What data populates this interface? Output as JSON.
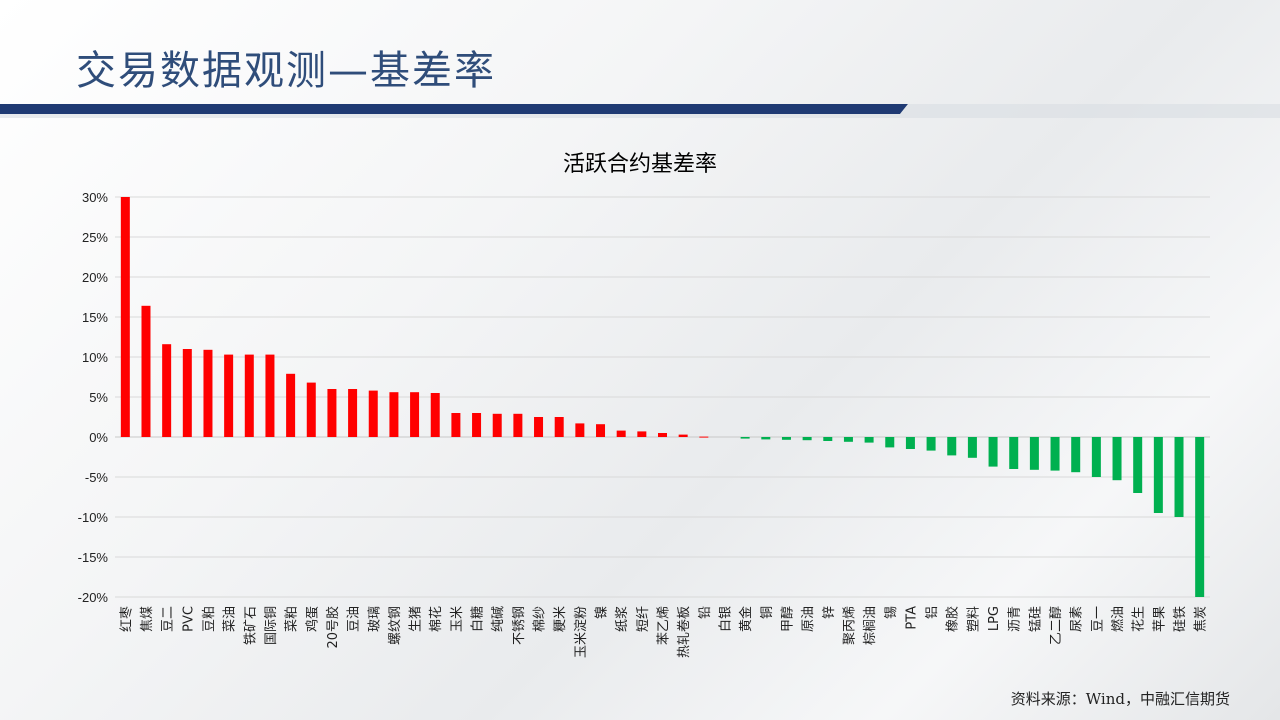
{
  "slide": {
    "title": "交易数据观测—基差率",
    "source": "资料来源：Wind，中融汇信期货"
  },
  "colors": {
    "positive": "#ff0000",
    "negative": "#00b050",
    "title": "#2f4d7a",
    "accent_bar": "#1f3a73"
  },
  "chart_data": {
    "type": "bar",
    "title": "活跃合约基差率",
    "xlabel": "",
    "ylabel": "",
    "ylim": [
      -20,
      30
    ],
    "y_ticks": [
      30,
      25,
      20,
      15,
      10,
      5,
      0,
      -5,
      -10,
      -15,
      -20
    ],
    "y_tick_labels": [
      "30%",
      "25%",
      "20%",
      "15%",
      "10%",
      "5%",
      "0%",
      "-5%",
      "-10%",
      "-15%",
      "-20%"
    ],
    "grid": true,
    "legend": "none",
    "categories": [
      "红枣",
      "焦煤",
      "豆二",
      "PVC",
      "豆粕",
      "菜油",
      "铁矿石",
      "国际铜",
      "菜粕",
      "鸡蛋",
      "20号胶",
      "豆油",
      "玻璃",
      "螺纹钢",
      "生猪",
      "棉花",
      "玉米",
      "白糖",
      "纯碱",
      "不锈钢",
      "棉纱",
      "粳米",
      "玉米淀粉",
      "镍",
      "纸浆",
      "短纤",
      "苯乙烯",
      "热轧卷板",
      "铅",
      "白银",
      "黄金",
      "铜",
      "甲醇",
      "原油",
      "锌",
      "聚丙烯",
      "棕榈油",
      "锡",
      "PTA",
      "铝",
      "橡胶",
      "塑料",
      "LPG",
      "沥青",
      "锰硅",
      "乙二醇",
      "尿素",
      "豆一",
      "燃油",
      "花生",
      "苹果",
      "硅铁",
      "焦炭"
    ],
    "values": [
      30,
      16.4,
      11.6,
      11,
      10.9,
      10.3,
      10.3,
      10.3,
      7.9,
      6.8,
      6,
      6,
      5.8,
      5.6,
      5.6,
      5.5,
      3,
      3,
      2.9,
      2.9,
      2.5,
      2.5,
      1.7,
      1.6,
      0.8,
      0.7,
      0.5,
      0.3,
      0.05,
      0,
      -0.2,
      -0.3,
      -0.35,
      -0.4,
      -0.5,
      -0.6,
      -0.7,
      -1.3,
      -1.5,
      -1.7,
      -2.3,
      -2.6,
      -3.7,
      -4,
      -4.1,
      -4.2,
      -4.4,
      -5,
      -5.4,
      -7,
      -9.5,
      -10,
      -20
    ]
  }
}
